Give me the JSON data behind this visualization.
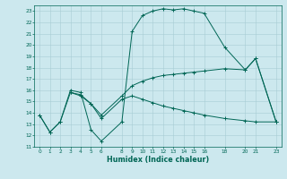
{
  "xlabel": "Humidex (Indice chaleur)",
  "bg_color": "#cce8ee",
  "grid_color": "#a8cdd4",
  "line_color": "#006655",
  "xlim": [
    -0.5,
    23.5
  ],
  "ylim": [
    11,
    23.5
  ],
  "xticks": [
    0,
    1,
    2,
    3,
    4,
    5,
    6,
    8,
    9,
    10,
    11,
    12,
    13,
    14,
    15,
    16,
    18,
    20,
    21,
    23
  ],
  "yticks": [
    11,
    12,
    13,
    14,
    15,
    16,
    17,
    18,
    19,
    20,
    21,
    22,
    23
  ],
  "curve1_x": [
    0,
    1,
    2,
    3,
    4,
    5,
    6,
    8,
    9,
    10,
    11,
    12,
    13,
    14,
    15,
    16,
    18,
    20,
    21,
    23
  ],
  "curve1_y": [
    13.8,
    12.3,
    13.2,
    16.0,
    15.8,
    12.5,
    11.5,
    13.2,
    21.2,
    22.6,
    23.0,
    23.2,
    23.1,
    23.2,
    23.0,
    22.8,
    19.8,
    17.8,
    18.8,
    13.2
  ],
  "curve2_x": [
    0,
    1,
    2,
    3,
    4,
    5,
    6,
    8,
    9,
    10,
    11,
    12,
    13,
    14,
    15,
    16,
    18,
    20,
    21,
    23
  ],
  "curve2_y": [
    13.8,
    12.3,
    13.2,
    15.8,
    15.6,
    14.8,
    13.8,
    15.5,
    16.4,
    16.8,
    17.1,
    17.3,
    17.4,
    17.5,
    17.6,
    17.7,
    17.9,
    17.8,
    18.8,
    13.2
  ],
  "curve3_x": [
    3,
    4,
    5,
    6,
    8,
    9,
    10,
    11,
    12,
    13,
    14,
    15,
    16,
    18,
    20,
    21,
    23
  ],
  "curve3_y": [
    15.8,
    15.5,
    14.8,
    13.5,
    15.2,
    15.5,
    15.2,
    14.9,
    14.6,
    14.4,
    14.2,
    14.0,
    13.8,
    13.5,
    13.3,
    13.2,
    13.2
  ]
}
